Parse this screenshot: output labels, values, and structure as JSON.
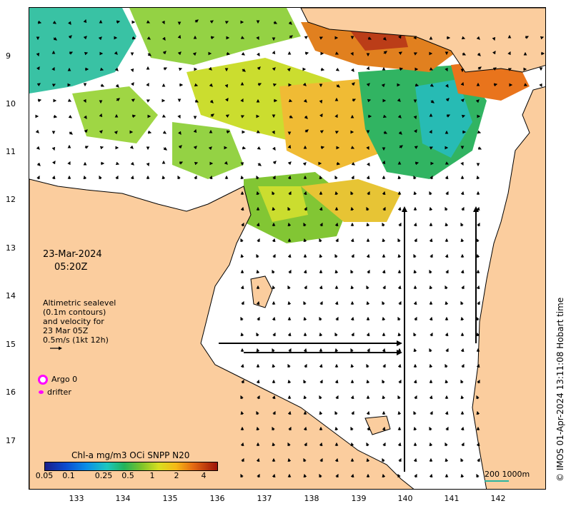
{
  "map": {
    "date": "23-Mar-2024",
    "time": "05:20Z",
    "lat_ticks": [
      "9",
      "10",
      "11",
      "12",
      "13",
      "14",
      "15",
      "16",
      "17"
    ],
    "lon_ticks": [
      "133",
      "134",
      "135",
      "136",
      "137",
      "138",
      "139",
      "140",
      "141",
      "142"
    ],
    "land_color": "#fbcd9e",
    "sea_color": "#ffffff"
  },
  "legend": {
    "altimetry_lines": [
      "Altimetric sealevel",
      "(0.1m contours)",
      "and velocity for",
      "23 Mar 05Z",
      "0.5m/s (1kt 12h)"
    ],
    "argo_label": "Argo 0",
    "drifter_label": "drifter",
    "argo_color": "#ff00ff"
  },
  "colorbar": {
    "title": "Chl-a mg/m3 OCi SNPP N20",
    "ticks": [
      "0.05",
      "0.1",
      "0.25",
      "0.5",
      "1",
      "2",
      "4"
    ]
  },
  "scale": {
    "label": "200  1000m"
  },
  "copyright": "© IMOS 01-Apr-2024 13:11:08 Hobart time"
}
